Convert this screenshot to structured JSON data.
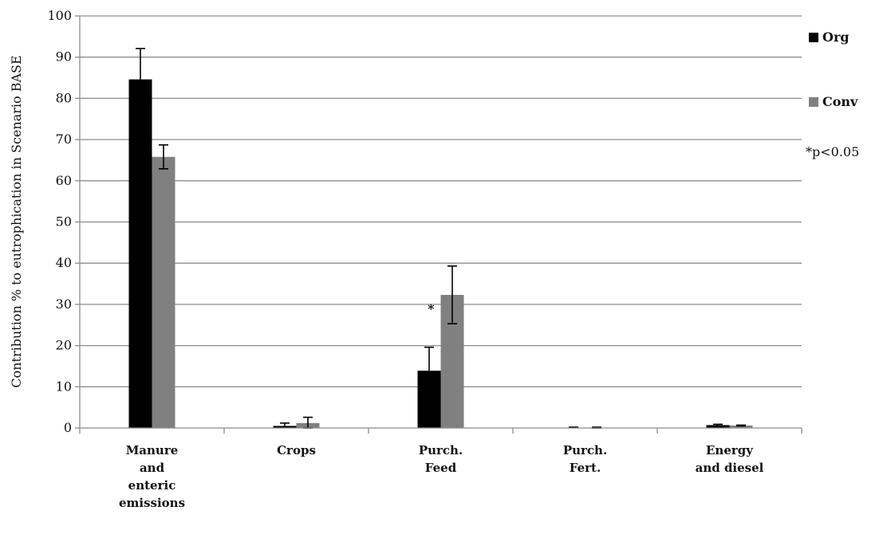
{
  "chart_data": {
    "type": "bar",
    "ylabel": "Contribution % to eutrophication in Scenario BASE",
    "ylim": [
      0,
      100
    ],
    "yticks": [
      0,
      10,
      20,
      30,
      40,
      50,
      60,
      70,
      80,
      90,
      100
    ],
    "grid": true,
    "legend_position": "right",
    "categories": [
      [
        "Manure",
        "and",
        "enteric",
        "emissions"
      ],
      [
        "Crops"
      ],
      [
        "Purch.",
        "Feed"
      ],
      [
        "Purch.",
        "Fert."
      ],
      [
        "Energy",
        "and diesel"
      ]
    ],
    "series": [
      {
        "name": "Org",
        "color": "#000000",
        "values": [
          84.6,
          0.5,
          13.9,
          0.1,
          0.7
        ],
        "err_upper": [
          92.1,
          1.2,
          19.6,
          0.2,
          0.9
        ],
        "err_lower": [
          84.6,
          0.5,
          13.9,
          0.1,
          0.7
        ]
      },
      {
        "name": "Conv",
        "color": "#808080",
        "values": [
          65.8,
          1.2,
          32.3,
          0.1,
          0.6
        ],
        "err_upper": [
          68.7,
          2.6,
          39.3,
          0.2,
          0.7
        ],
        "err_lower": [
          62.9,
          0.0,
          25.3,
          0.0,
          0.5
        ]
      }
    ],
    "annotations": [
      {
        "text": "*",
        "category_index": 2,
        "y": 29
      }
    ],
    "note": "*p<0.05"
  }
}
